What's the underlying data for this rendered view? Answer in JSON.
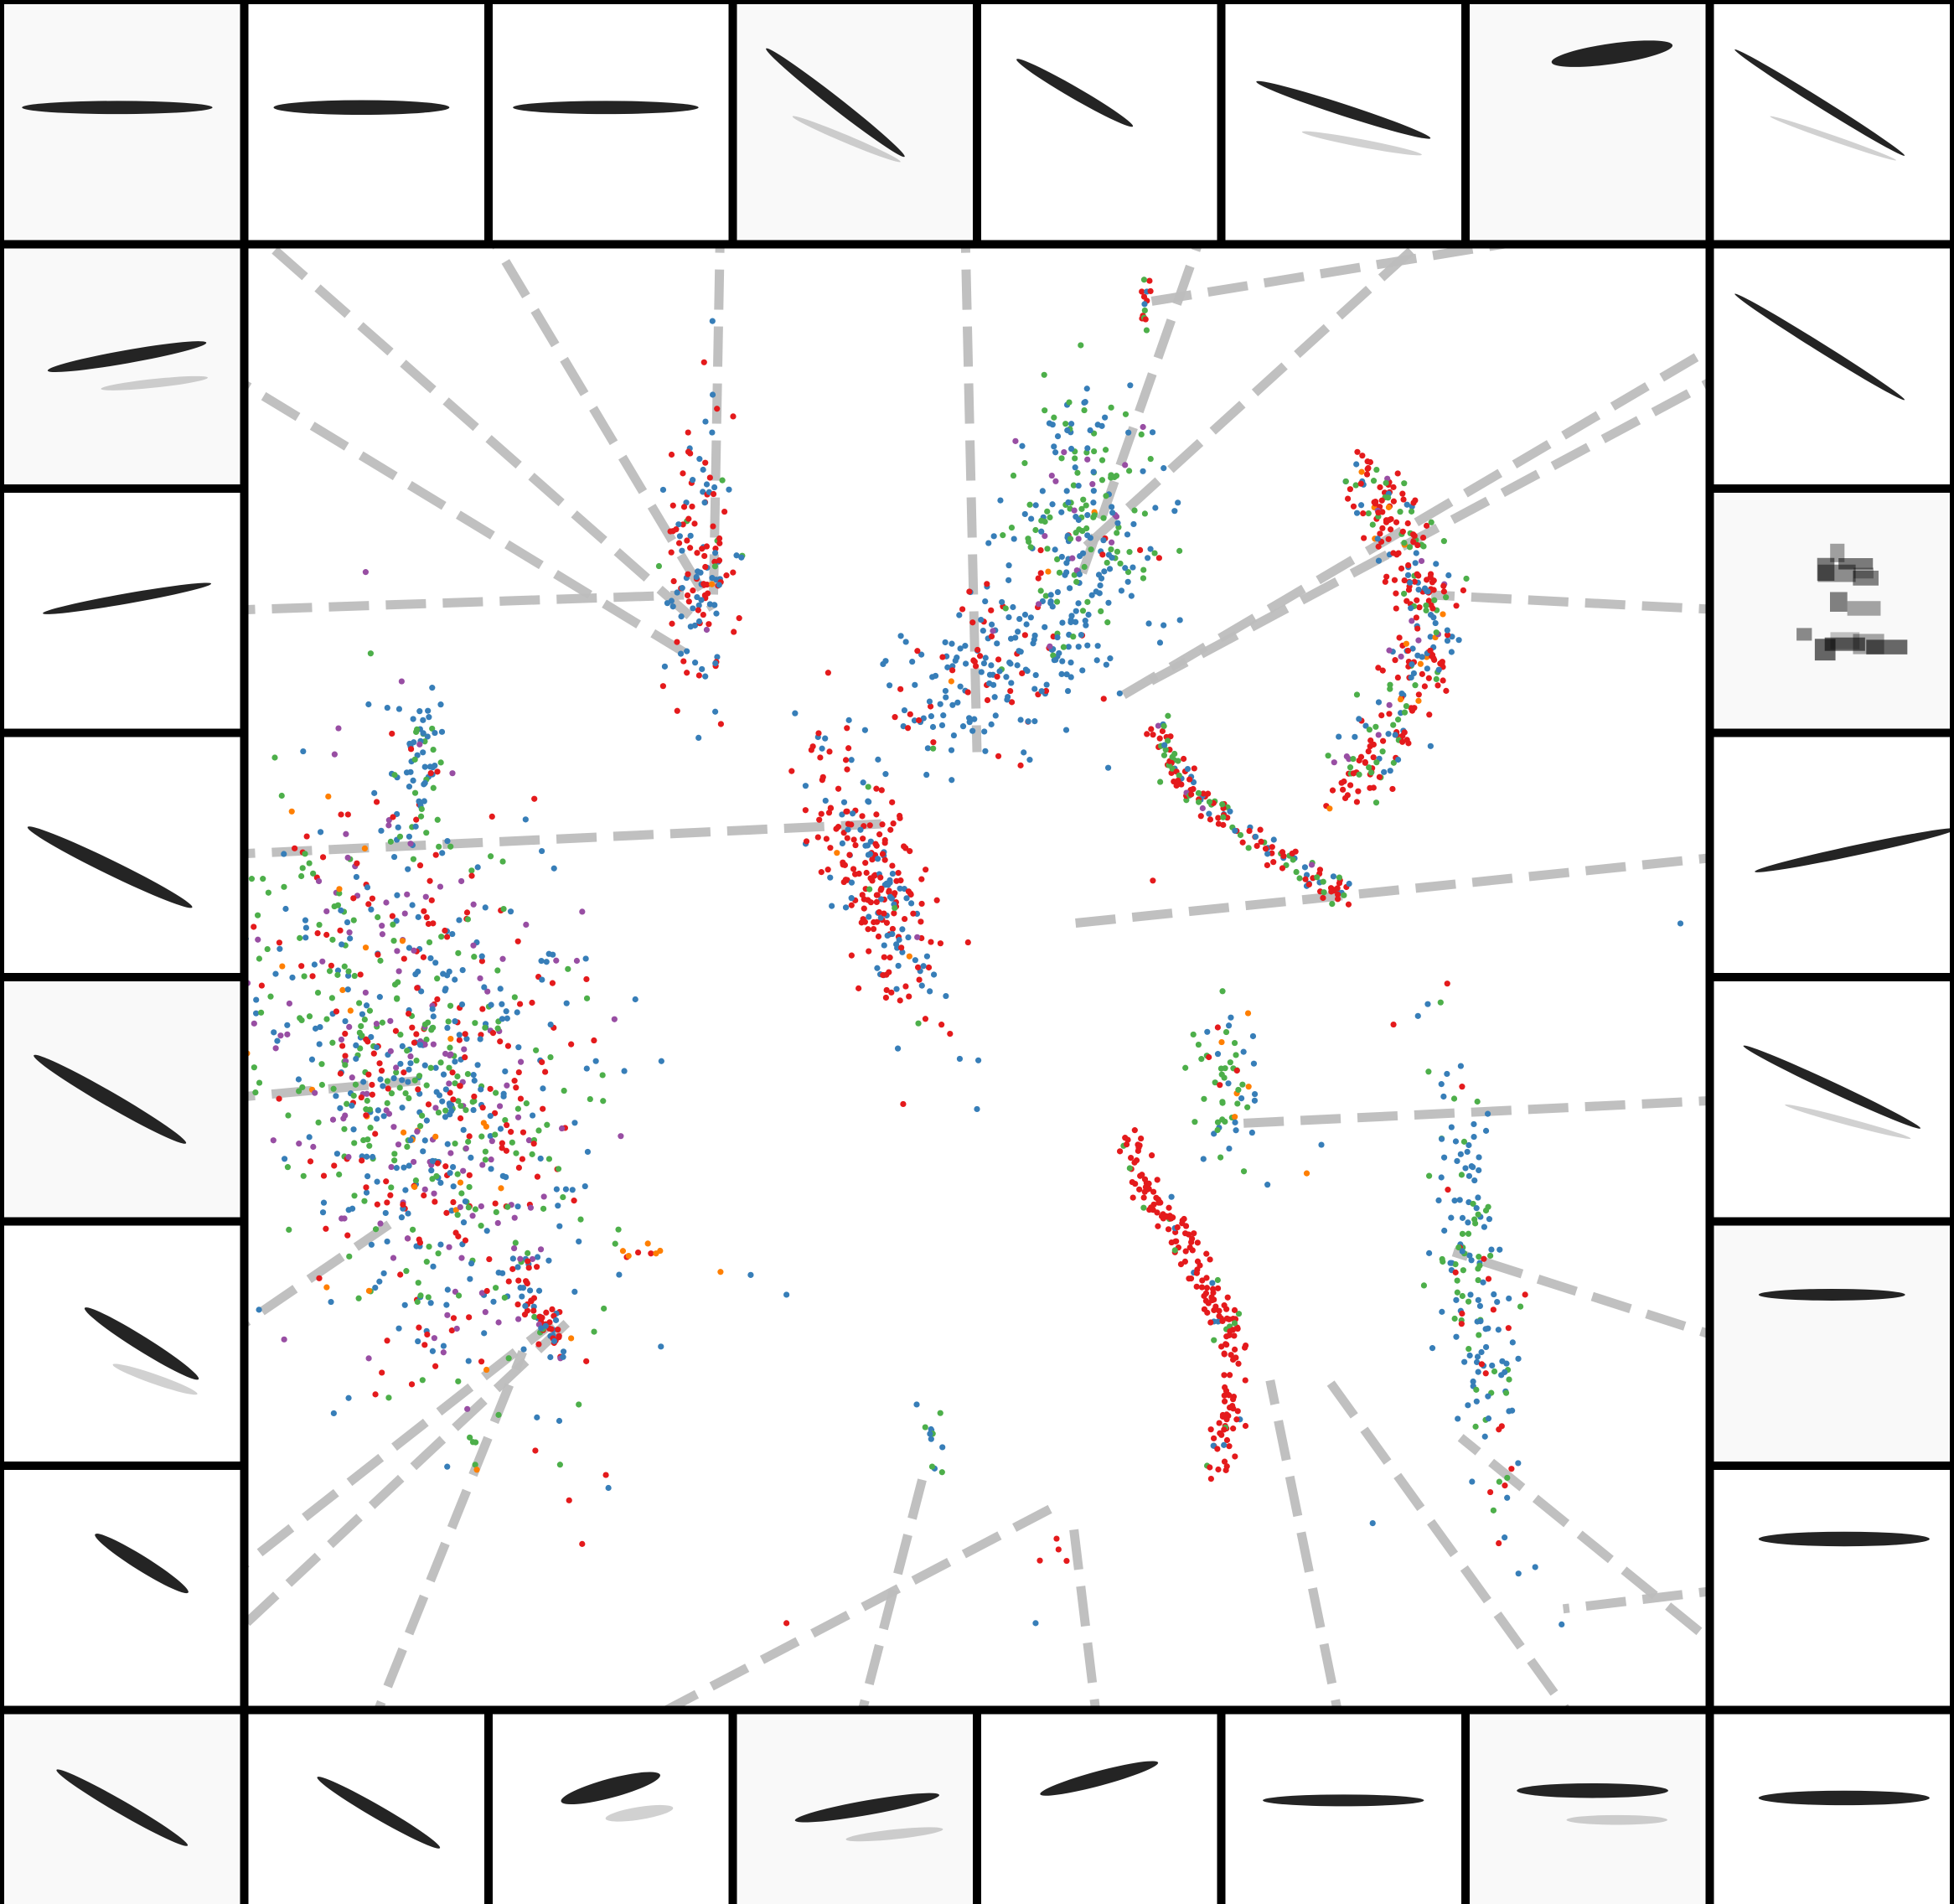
{
  "chart_data": {
    "type": "scatter",
    "title": "",
    "xlabel": "",
    "ylabel": "",
    "axes_visible": false,
    "grid": false,
    "legend": "none",
    "xlim": [
      0,
      100
    ],
    "ylim": [
      0,
      100
    ],
    "series_colors": [
      "#e41a1c",
      "#377eb8",
      "#4daf4a",
      "#984ea3",
      "#ff7f00"
    ],
    "thumbnail_tiles": 28,
    "thumbnail_style": "grayscale spectrogram-like stroke",
    "connector_style": {
      "color": "#bdbdbd",
      "dashed": true
    },
    "clusters": [
      {
        "id": "c1",
        "center": [
          31,
          77
        ],
        "spread": [
          1.2,
          5.5
        ],
        "tilt": -0.05,
        "n": 140,
        "mix": [
          0.55,
          0.4,
          0.03,
          0.01,
          0.01
        ]
      },
      {
        "id": "c2",
        "center": [
          51,
          70
        ],
        "spread": [
          4.5,
          2.8
        ],
        "tilt": 0.4,
        "n": 200,
        "mix": [
          0.2,
          0.75,
          0.03,
          0.01,
          0.01
        ]
      },
      {
        "id": "c3",
        "center": [
          57,
          80
        ],
        "spread": [
          2.6,
          4.6
        ],
        "tilt": 0,
        "n": 220,
        "mix": [
          0.05,
          0.45,
          0.43,
          0.06,
          0.01
        ]
      },
      {
        "id": "c4",
        "center": [
          61.5,
          95.5
        ],
        "spread": [
          0.2,
          1.0
        ],
        "tilt": 0,
        "n": 14,
        "mix": [
          0.6,
          0.2,
          0.2,
          0,
          0
        ]
      },
      {
        "id": "c5",
        "center": [
          12,
          63
        ],
        "spread": [
          0.8,
          3.0
        ],
        "tilt": 0,
        "n": 60,
        "mix": [
          0.05,
          0.6,
          0.3,
          0.04,
          0.01
        ]
      },
      {
        "id": "c6",
        "center": [
          12,
          41
        ],
        "spread": [
          5.5,
          11
        ],
        "tilt": 0.5,
        "n": 900,
        "mix": [
          0.22,
          0.3,
          0.3,
          0.15,
          0.03
        ]
      },
      {
        "id": "c7",
        "center": [
          43,
          55
        ],
        "spread": [
          1.6,
          5.8
        ],
        "tilt": 0.55,
        "n": 240,
        "mix": [
          0.6,
          0.38,
          0.01,
          0.005,
          0.005
        ]
      },
      {
        "id": "c8",
        "center": [
          67,
          40
        ],
        "spread": [
          1.2,
          3.2
        ],
        "tilt": 0,
        "n": 60,
        "mix": [
          0.05,
          0.4,
          0.52,
          0.0,
          0.03
        ]
      },
      {
        "id": "c9",
        "center": [
          27,
          29
        ],
        "spread": [
          1.2,
          0.25
        ],
        "tilt": 0,
        "n": 8,
        "mix": [
          0.5,
          0.1,
          0,
          0,
          0.4
        ]
      },
      {
        "id": "c10",
        "center": [
          84,
          26
        ],
        "spread": [
          1.2,
          8
        ],
        "tilt": 0.2,
        "n": 170,
        "mix": [
          0.08,
          0.6,
          0.32,
          0,
          0
        ]
      },
      {
        "id": "c11",
        "center": [
          47,
          16
        ],
        "spread": [
          0.4,
          1.5
        ],
        "tilt": 0.2,
        "n": 12,
        "mix": [
          0,
          0.5,
          0.5,
          0,
          0
        ]
      },
      {
        "id": "c12",
        "center": [
          55.5,
          8
        ],
        "spread": [
          0.6,
          0.6
        ],
        "tilt": 0,
        "n": 4,
        "mix": [
          1,
          0,
          0,
          0,
          0
        ]
      }
    ],
    "curves": [
      {
        "id": "k1",
        "path": [
          [
            75,
            61
          ],
          [
            78,
            65
          ],
          [
            80,
            69
          ],
          [
            81,
            73
          ],
          [
            80,
            77
          ],
          [
            78,
            81
          ],
          [
            76,
            83
          ]
        ],
        "spread": 1.1,
        "n": 320,
        "mix": [
          0.55,
          0.2,
          0.18,
          0.04,
          0.03
        ]
      },
      {
        "id": "k2",
        "path": [
          [
            62,
            66
          ],
          [
            65,
            61
          ],
          [
            70,
            57
          ],
          [
            75,
            54
          ]
        ],
        "spread": 0.45,
        "n": 150,
        "mix": [
          0.45,
          0.2,
          0.3,
          0.05,
          0
        ]
      },
      {
        "id": "k3",
        "path": [
          [
            60,
            37
          ],
          [
            62,
            33
          ],
          [
            64,
            30
          ],
          [
            66,
            26
          ],
          [
            67.5,
            23
          ],
          [
            67,
            18
          ],
          [
            66.5,
            13
          ]
        ],
        "spread": 0.5,
        "n": 200,
        "mix": [
          0.85,
          0.08,
          0.07,
          0,
          0
        ]
      },
      {
        "id": "k4",
        "path": [
          [
            18,
            28
          ],
          [
            20,
            25
          ],
          [
            21.5,
            22
          ]
        ],
        "spread": 0.5,
        "n": 60,
        "mix": [
          0.6,
          0.3,
          0.05,
          0.05,
          0
        ]
      }
    ],
    "sparse_points": [
      {
        "x": 31,
        "y": 65,
        "c": 1
      },
      {
        "x": 37,
        "y": 26,
        "c": 1
      },
      {
        "x": 62,
        "y": 55,
        "c": 0
      },
      {
        "x": 98,
        "y": 52,
        "c": 1
      },
      {
        "x": 86,
        "y": 9,
        "c": 1
      },
      {
        "x": 54,
        "y": 3,
        "c": 1
      },
      {
        "x": 37,
        "y": 3,
        "c": 0
      },
      {
        "x": 73.5,
        "y": 36.5,
        "c": 1
      },
      {
        "x": 72.5,
        "y": 34.5,
        "c": 4
      },
      {
        "x": 77,
        "y": 10,
        "c": 1
      },
      {
        "x": 50,
        "y": 39,
        "c": 1
      },
      {
        "x": 46,
        "y": 45,
        "c": 2
      }
    ],
    "connections": [
      {
        "tile": "t0",
        "target": [
          31,
          73
        ]
      },
      {
        "tile": "t1",
        "target": [
          32,
          74
        ]
      },
      {
        "tile": "t2",
        "target": [
          32,
          74
        ]
      },
      {
        "tile": "t3",
        "target": [
          50,
          64
        ]
      },
      {
        "tile": "t4",
        "target": [
          57,
          76
        ]
      },
      {
        "tile": "t5",
        "target": [
          57,
          78
        ]
      },
      {
        "tile": "t6",
        "target": [
          61.5,
          95.5
        ]
      },
      {
        "tile": "t7",
        "target": [
          60,
          68
        ]
      },
      {
        "tile": "t8",
        "target": [
          61,
          68.5
        ]
      },
      {
        "tile": "t9",
        "target": [
          81,
          75
        ]
      },
      {
        "tile": "t10",
        "target": [
          56.5,
          52
        ]
      },
      {
        "tile": "t11",
        "target": [
          68,
          38
        ]
      },
      {
        "tile": "t12",
        "target": [
          82.5,
          29
        ]
      },
      {
        "tile": "t13",
        "target": [
          90,
          4
        ]
      },
      {
        "tile": "t14",
        "target": [
          83,
          16
        ]
      },
      {
        "tile": "t15",
        "target": [
          74,
          20
        ]
      },
      {
        "tile": "t16",
        "target": [
          70,
          20
        ]
      },
      {
        "tile": "t17",
        "target": [
          56.5,
          10.5
        ]
      },
      {
        "tile": "t18",
        "target": [
          46.5,
          14
        ]
      },
      {
        "tile": "t19",
        "target": [
          55,
          11
        ]
      },
      {
        "tile": "t20",
        "target": [
          19,
          22
        ]
      },
      {
        "tile": "t21",
        "target": [
          22,
          24
        ]
      },
      {
        "tile": "t22",
        "target": [
          21,
          24
        ]
      },
      {
        "tile": "t23",
        "target": [
          10,
          31
        ]
      },
      {
        "tile": "t24",
        "target": [
          12,
          41
        ]
      },
      {
        "tile": "t25",
        "target": [
          44,
          59
        ]
      },
      {
        "tile": "t26",
        "target": [
          30,
          75
        ]
      },
      {
        "tile": "t27",
        "target": [
          30,
          71
        ]
      }
    ]
  }
}
